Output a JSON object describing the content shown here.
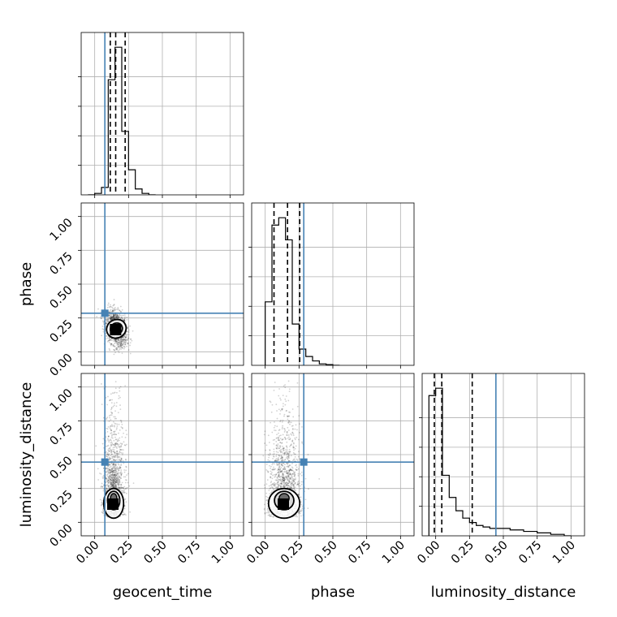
{
  "chart_data": {
    "type": "corner",
    "parameters": [
      "geocent_time",
      "phase",
      "luminosity_distance"
    ],
    "axis_labels": {
      "x": [
        "geocent_time",
        "phase",
        "luminosity_distance"
      ],
      "y": [
        "phase",
        "luminosity_distance"
      ]
    },
    "xlim": [
      -0.1,
      1.1
    ],
    "ylim": [
      -0.1,
      1.1
    ],
    "ticks": [
      0.0,
      0.25,
      0.5,
      0.75,
      1.0
    ],
    "tick_labels": [
      "0.00",
      "0.25",
      "0.50",
      "0.75",
      "1.00"
    ],
    "grid": true,
    "truths": {
      "geocent_time": 0.075,
      "phase": 0.285,
      "luminosity_distance": 0.445
    },
    "truth_color": "#4682b4",
    "histograms": [
      {
        "parameter": "geocent_time",
        "bins": [
          -0.05,
          0.0,
          0.05,
          0.1,
          0.15,
          0.2,
          0.25,
          0.3,
          0.35,
          0.4,
          0.45
        ],
        "density": [
          0.0,
          0.01,
          0.05,
          0.78,
          1.0,
          0.43,
          0.17,
          0.04,
          0.01,
          0.0
        ],
        "quantiles": [
          0.115,
          0.155,
          0.225
        ]
      },
      {
        "parameter": "phase",
        "bins": [
          0.0,
          0.05,
          0.1,
          0.15,
          0.2,
          0.25,
          0.3,
          0.35,
          0.4,
          0.45,
          0.5,
          0.55
        ],
        "density": [
          0.43,
          0.95,
          1.0,
          0.85,
          0.28,
          0.11,
          0.06,
          0.03,
          0.01,
          0.005,
          0.0
        ],
        "quantiles": [
          0.065,
          0.165,
          0.255
        ]
      },
      {
        "parameter": "luminosity_distance",
        "bins": [
          -0.05,
          0.0,
          0.05,
          0.1,
          0.15,
          0.2,
          0.25,
          0.3,
          0.35,
          0.4,
          0.45,
          0.5,
          0.55,
          0.6,
          0.65,
          0.7,
          0.75,
          0.8,
          0.85,
          0.9,
          0.95,
          1.0
        ],
        "density": [
          0.95,
          1.0,
          0.41,
          0.26,
          0.17,
          0.12,
          0.09,
          0.07,
          0.06,
          0.05,
          0.05,
          0.05,
          0.04,
          0.04,
          0.03,
          0.03,
          0.02,
          0.02,
          0.01,
          0.01,
          0.0
        ],
        "quantiles": [
          -0.01,
          0.045,
          0.27
        ]
      }
    ],
    "panels_2d": [
      {
        "x": "geocent_time",
        "y": "phase",
        "center": [
          0.16,
          0.17
        ],
        "spread": [
          0.07,
          0.09
        ],
        "slope": -0.55
      },
      {
        "x": "geocent_time",
        "y": "luminosity_distance",
        "center": [
          0.14,
          0.14
        ],
        "spread": [
          0.07,
          0.22
        ],
        "slope": 0.0
      },
      {
        "x": "phase",
        "y": "luminosity_distance",
        "center": [
          0.14,
          0.14
        ],
        "spread": [
          0.11,
          0.22
        ],
        "slope": 0.0
      }
    ]
  }
}
